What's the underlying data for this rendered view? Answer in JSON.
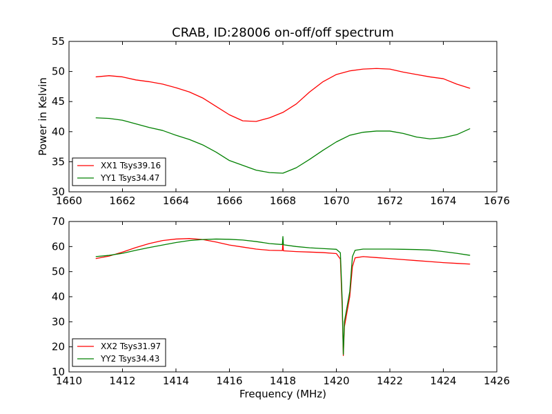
{
  "chart_data": [
    {
      "type": "line",
      "title": "CRAB, ID:28006 on-off/off spectrum",
      "xlabel": "",
      "ylabel": "Power in Kelvin",
      "xlim": [
        1660,
        1676
      ],
      "ylim": [
        30,
        55
      ],
      "xticks": [
        "1660",
        "1662",
        "1664",
        "1666",
        "1668",
        "1670",
        "1672",
        "1674",
        "1676"
      ],
      "yticks": [
        "30",
        "35",
        "40",
        "45",
        "50",
        "55"
      ],
      "grid": false,
      "legend_position": "lower-left",
      "series": [
        {
          "name": "XX1 Tsys39.16",
          "color": "#ff0000",
          "x": [
            1661.0,
            1661.5,
            1662.0,
            1662.5,
            1663.0,
            1663.5,
            1664.0,
            1664.5,
            1665.0,
            1665.5,
            1666.0,
            1666.5,
            1667.0,
            1667.5,
            1668.0,
            1668.5,
            1669.0,
            1669.5,
            1670.0,
            1670.5,
            1671.0,
            1671.5,
            1672.0,
            1672.5,
            1673.0,
            1673.5,
            1674.0,
            1674.5,
            1675.0
          ],
          "y": [
            49.1,
            49.3,
            49.1,
            48.6,
            48.3,
            47.9,
            47.3,
            46.6,
            45.6,
            44.2,
            42.8,
            41.8,
            41.7,
            42.3,
            43.2,
            44.6,
            46.6,
            48.3,
            49.5,
            50.1,
            50.4,
            50.5,
            50.4,
            49.9,
            49.5,
            49.1,
            48.8,
            47.9,
            47.2
          ]
        },
        {
          "name": "YY1 Tsys34.47",
          "color": "#008000",
          "x": [
            1661.0,
            1661.5,
            1662.0,
            1662.5,
            1663.0,
            1663.5,
            1664.0,
            1664.5,
            1665.0,
            1665.5,
            1666.0,
            1666.5,
            1667.0,
            1667.5,
            1668.0,
            1668.5,
            1669.0,
            1669.5,
            1670.0,
            1670.5,
            1671.0,
            1671.5,
            1672.0,
            1672.5,
            1673.0,
            1673.5,
            1674.0,
            1674.5,
            1675.0
          ],
          "y": [
            42.3,
            42.2,
            41.9,
            41.3,
            40.7,
            40.2,
            39.4,
            38.7,
            37.8,
            36.6,
            35.2,
            34.4,
            33.6,
            33.2,
            33.1,
            34.0,
            35.4,
            36.9,
            38.3,
            39.4,
            39.9,
            40.1,
            40.1,
            39.7,
            39.1,
            38.8,
            39.0,
            39.5,
            40.5
          ]
        }
      ]
    },
    {
      "type": "line",
      "title": "",
      "xlabel": "Frequency (MHz)",
      "ylabel": "",
      "xlim": [
        1410,
        1426
      ],
      "ylim": [
        10,
        70
      ],
      "xticks": [
        "1410",
        "1412",
        "1414",
        "1416",
        "1418",
        "1420",
        "1422",
        "1424",
        "1426"
      ],
      "yticks": [
        "10",
        "20",
        "30",
        "40",
        "50",
        "60",
        "70"
      ],
      "grid": false,
      "legend_position": "lower-left",
      "series": [
        {
          "name": "XX2 Tsys31.97",
          "color": "#ff0000",
          "x": [
            1411.0,
            1411.5,
            1412.0,
            1412.5,
            1413.0,
            1413.5,
            1414.0,
            1414.5,
            1415.0,
            1415.5,
            1416.0,
            1416.5,
            1417.0,
            1417.5,
            1417.98,
            1418.0,
            1418.02,
            1418.5,
            1419.0,
            1419.5,
            1420.0,
            1420.15,
            1420.22,
            1420.26,
            1420.3,
            1420.4,
            1420.5,
            1420.6,
            1420.7,
            1421.0,
            1421.5,
            1422.0,
            1422.5,
            1423.0,
            1423.5,
            1424.0,
            1424.5,
            1425.0
          ],
          "y": [
            55.2,
            56.2,
            57.8,
            59.6,
            61.2,
            62.4,
            63.0,
            63.2,
            62.8,
            61.8,
            60.6,
            59.8,
            59.0,
            58.5,
            58.4,
            61.5,
            58.3,
            58.0,
            57.8,
            57.6,
            57.2,
            55.0,
            35.0,
            16.5,
            28.0,
            34.0,
            40.0,
            52.0,
            55.5,
            56.0,
            55.6,
            55.2,
            54.8,
            54.4,
            54.0,
            53.6,
            53.3,
            53.0
          ]
        },
        {
          "name": "YY2 Tsys34.43",
          "color": "#008000",
          "x": [
            1411.0,
            1411.5,
            1412.0,
            1412.5,
            1413.0,
            1413.5,
            1414.0,
            1414.5,
            1415.0,
            1415.5,
            1416.0,
            1416.5,
            1417.0,
            1417.5,
            1417.98,
            1418.0,
            1418.02,
            1418.5,
            1419.0,
            1419.5,
            1420.0,
            1420.15,
            1420.22,
            1420.26,
            1420.3,
            1420.4,
            1420.5,
            1420.6,
            1420.7,
            1421.0,
            1421.5,
            1422.0,
            1422.5,
            1423.0,
            1423.5,
            1424.0,
            1424.5,
            1425.0
          ],
          "y": [
            56.0,
            56.5,
            57.3,
            58.5,
            59.6,
            60.6,
            61.6,
            62.4,
            62.8,
            63.0,
            62.9,
            62.6,
            62.0,
            61.2,
            60.8,
            64.0,
            60.7,
            60.0,
            59.5,
            59.2,
            58.9,
            57.5,
            38.0,
            17.0,
            30.0,
            36.0,
            42.0,
            56.0,
            58.5,
            59.0,
            59.0,
            59.0,
            58.9,
            58.8,
            58.6,
            58.0,
            57.3,
            56.5
          ]
        }
      ]
    }
  ]
}
